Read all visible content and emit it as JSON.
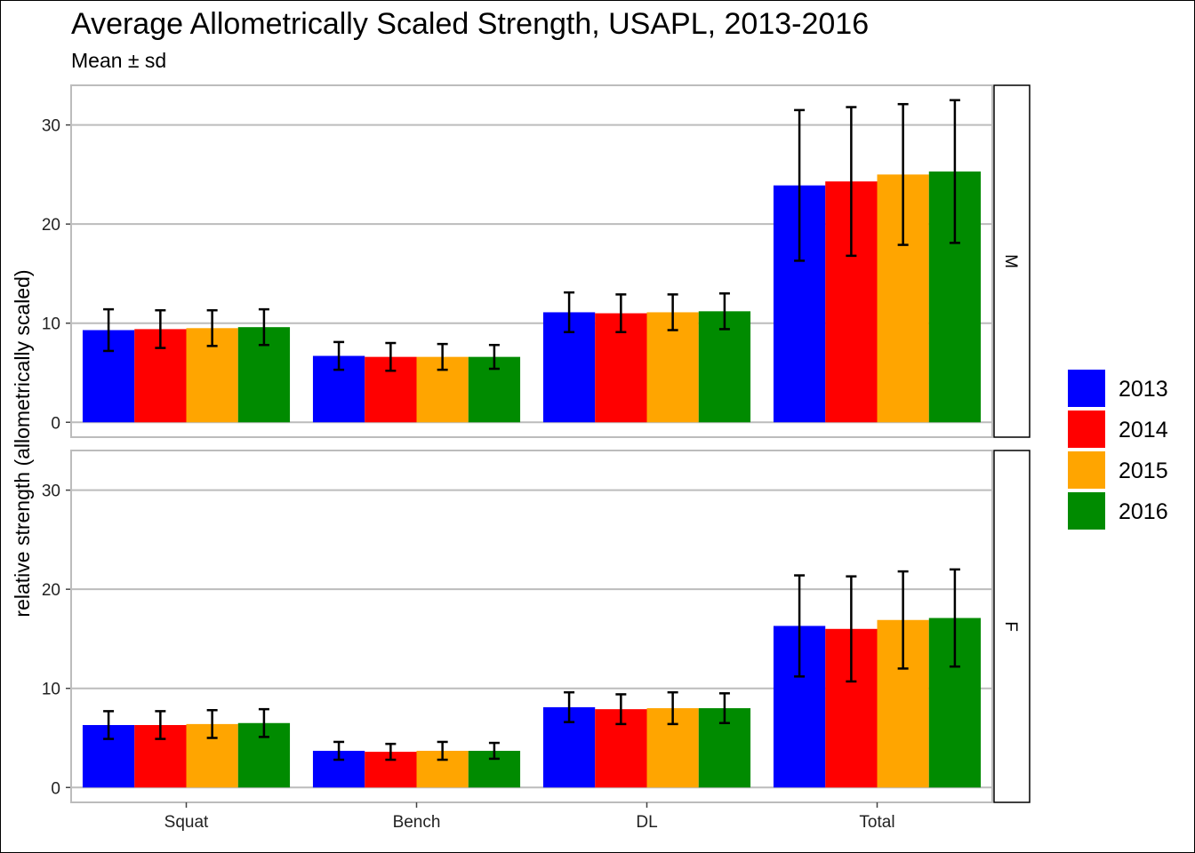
{
  "chart_data": {
    "type": "bar",
    "title": "Average Allometrically Scaled Strength, USAPL, 2013-2016",
    "subtitle": "Mean ± sd",
    "ylabel": "relative strength (allometrically scaled)",
    "xlabel": "",
    "categories": [
      "Squat",
      "Bench",
      "DL",
      "Total"
    ],
    "ylim": [
      -1.5,
      34
    ],
    "yticks": [
      0,
      10,
      20,
      30
    ],
    "grid": true,
    "legend_position": "right",
    "series_colors": {
      "2013": "#0000ff",
      "2014": "#ff0000",
      "2015": "#ffa500",
      "2016": "#008b00"
    },
    "panels": [
      {
        "label": "M",
        "series": [
          {
            "name": "2013",
            "values": [
              9.3,
              6.7,
              11.1,
              23.9
            ],
            "sd": [
              2.1,
              1.4,
              2.0,
              7.6
            ]
          },
          {
            "name": "2014",
            "values": [
              9.4,
              6.6,
              11.0,
              24.3
            ],
            "sd": [
              1.9,
              1.4,
              1.9,
              7.5
            ]
          },
          {
            "name": "2015",
            "values": [
              9.5,
              6.6,
              11.1,
              25.0
            ],
            "sd": [
              1.8,
              1.3,
              1.8,
              7.1
            ]
          },
          {
            "name": "2016",
            "values": [
              9.6,
              6.6,
              11.2,
              25.3
            ],
            "sd": [
              1.8,
              1.2,
              1.8,
              7.2
            ]
          }
        ]
      },
      {
        "label": "F",
        "series": [
          {
            "name": "2013",
            "values": [
              6.3,
              3.7,
              8.1,
              16.3
            ],
            "sd": [
              1.4,
              0.9,
              1.5,
              5.1
            ]
          },
          {
            "name": "2014",
            "values": [
              6.3,
              3.6,
              7.9,
              16.0
            ],
            "sd": [
              1.4,
              0.8,
              1.5,
              5.3
            ]
          },
          {
            "name": "2015",
            "values": [
              6.4,
              3.7,
              8.0,
              16.9
            ],
            "sd": [
              1.4,
              0.9,
              1.6,
              4.9
            ]
          },
          {
            "name": "2016",
            "values": [
              6.5,
              3.7,
              8.0,
              17.1
            ],
            "sd": [
              1.4,
              0.8,
              1.5,
              4.9
            ]
          }
        ]
      }
    ]
  }
}
